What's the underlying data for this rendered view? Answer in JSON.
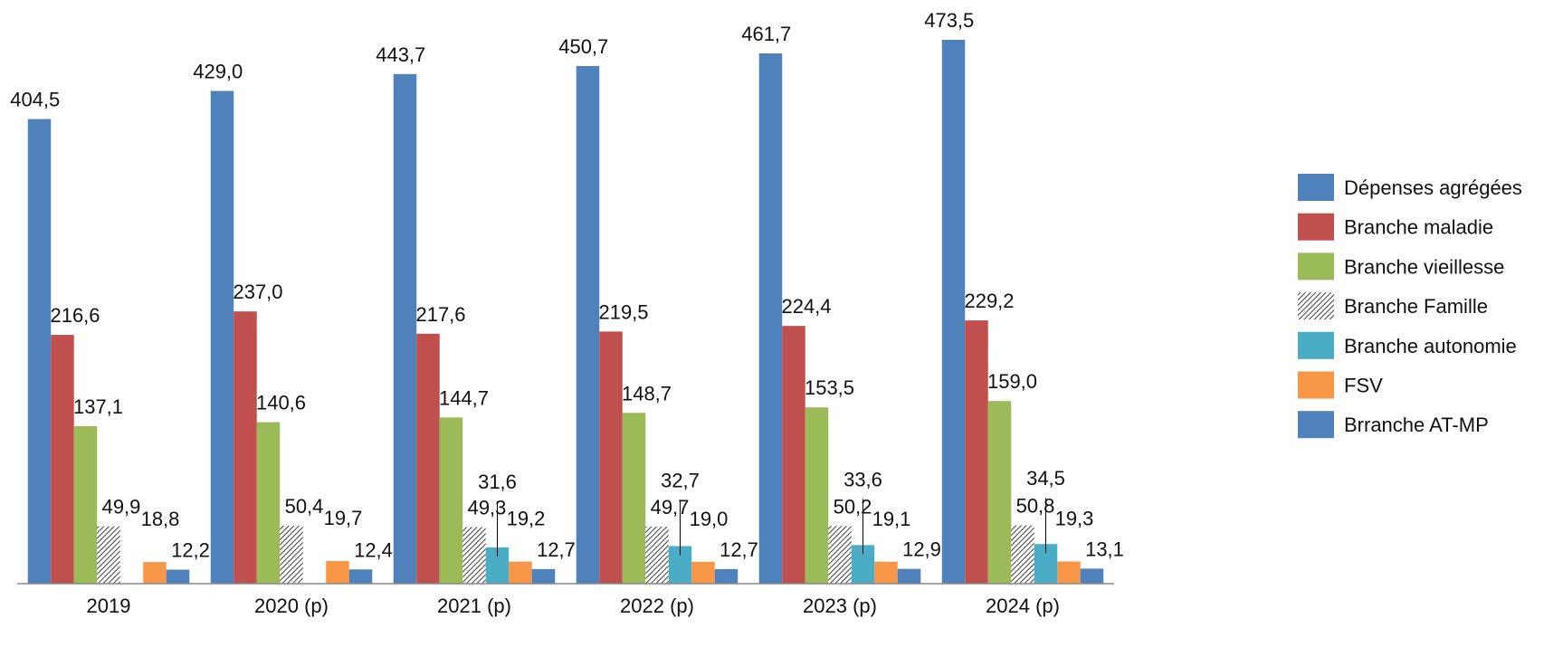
{
  "chart_data": {
    "type": "bar",
    "categories": [
      "2019",
      "2020 (p)",
      "2021 (p)",
      "2022 (p)",
      "2023 (p)",
      "2024 (p)"
    ],
    "legend": "right",
    "series": [
      {
        "name": "Dépenses agrégées",
        "color": "#4f81bd",
        "values": [
          404.5,
          429.0,
          443.7,
          450.7,
          461.7,
          473.5
        ],
        "value_labels": [
          "404,5",
          "429,0",
          "443,7",
          "450,7",
          "461,7",
          "473,5"
        ]
      },
      {
        "name": "Branche maladie",
        "color": "#c0504d",
        "values": [
          216.6,
          237.0,
          217.6,
          219.5,
          224.4,
          229.2
        ],
        "value_labels": [
          "216,6",
          "237,0",
          "217,6",
          "219,5",
          "224,4",
          "229,2"
        ]
      },
      {
        "name": "Branche vieillesse",
        "color": "#9bbb59",
        "values": [
          137.1,
          140.6,
          144.7,
          148.7,
          153.5,
          159.0
        ],
        "value_labels": [
          "137,1",
          "140,6",
          "144,7",
          "148,7",
          "153,5",
          "159,0"
        ]
      },
      {
        "name": "Branche Famille",
        "color": "#404040",
        "pattern": "hatch",
        "values": [
          49.9,
          50.4,
          49.3,
          49.7,
          50.2,
          50.8
        ],
        "value_labels": [
          "49,9",
          "50,4",
          "49,3",
          "49,7",
          "50,2",
          "50,8"
        ]
      },
      {
        "name": "Branche autonomie",
        "color": "#4bacc6",
        "values": [
          null,
          null,
          31.6,
          32.7,
          33.6,
          34.5
        ],
        "value_labels": [
          null,
          null,
          "31,6",
          "32,7",
          "33,6",
          "34,5"
        ]
      },
      {
        "name": "FSV",
        "color": "#f79646",
        "values": [
          18.8,
          19.7,
          19.2,
          19.0,
          19.1,
          19.3
        ],
        "value_labels": [
          "18,8",
          "19,7",
          "19,2",
          "19,0",
          "19,1",
          "19,3"
        ]
      },
      {
        "name": "Brranche AT-MP",
        "color": "#4f81bd",
        "values": [
          12.2,
          12.4,
          12.7,
          12.7,
          12.9,
          13.1
        ],
        "value_labels": [
          "12,2",
          "12,4",
          "12,7",
          "12,7",
          "12,9",
          "13,1"
        ]
      }
    ]
  }
}
